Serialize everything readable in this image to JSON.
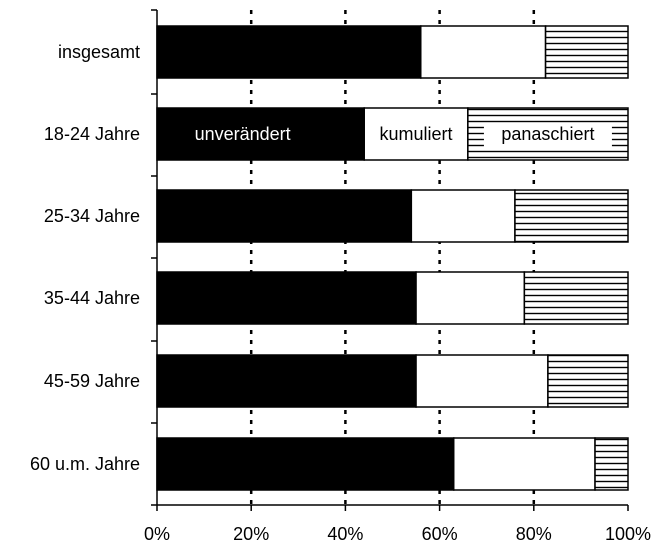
{
  "chart_data": {
    "type": "bar",
    "orientation": "horizontal",
    "stacked": true,
    "categories": [
      "insgesamt",
      "18-24 Jahre",
      "25-34 Jahre",
      "35-44 Jahre",
      "45-59 Jahre",
      "60 u.m. Jahre"
    ],
    "series": [
      {
        "name": "unverändert",
        "values": [
          56,
          44,
          54,
          55,
          55,
          63
        ],
        "fill": "#000000"
      },
      {
        "name": "kumuliert",
        "values": [
          26.5,
          22,
          22,
          23,
          28,
          30
        ],
        "fill": "#ffffff"
      },
      {
        "name": "panaschiert",
        "values": [
          17.5,
          34,
          24,
          22,
          17,
          7
        ],
        "fill": "hatch"
      }
    ],
    "x_tick_labels": [
      "0%",
      "20%",
      "40%",
      "60%",
      "80%",
      "100%"
    ],
    "xlim": [
      0,
      100
    ],
    "grid": "dotted vertical",
    "inline_labels_category": "18-24 Jahre",
    "title": "",
    "xlabel": "",
    "ylabel": ""
  }
}
